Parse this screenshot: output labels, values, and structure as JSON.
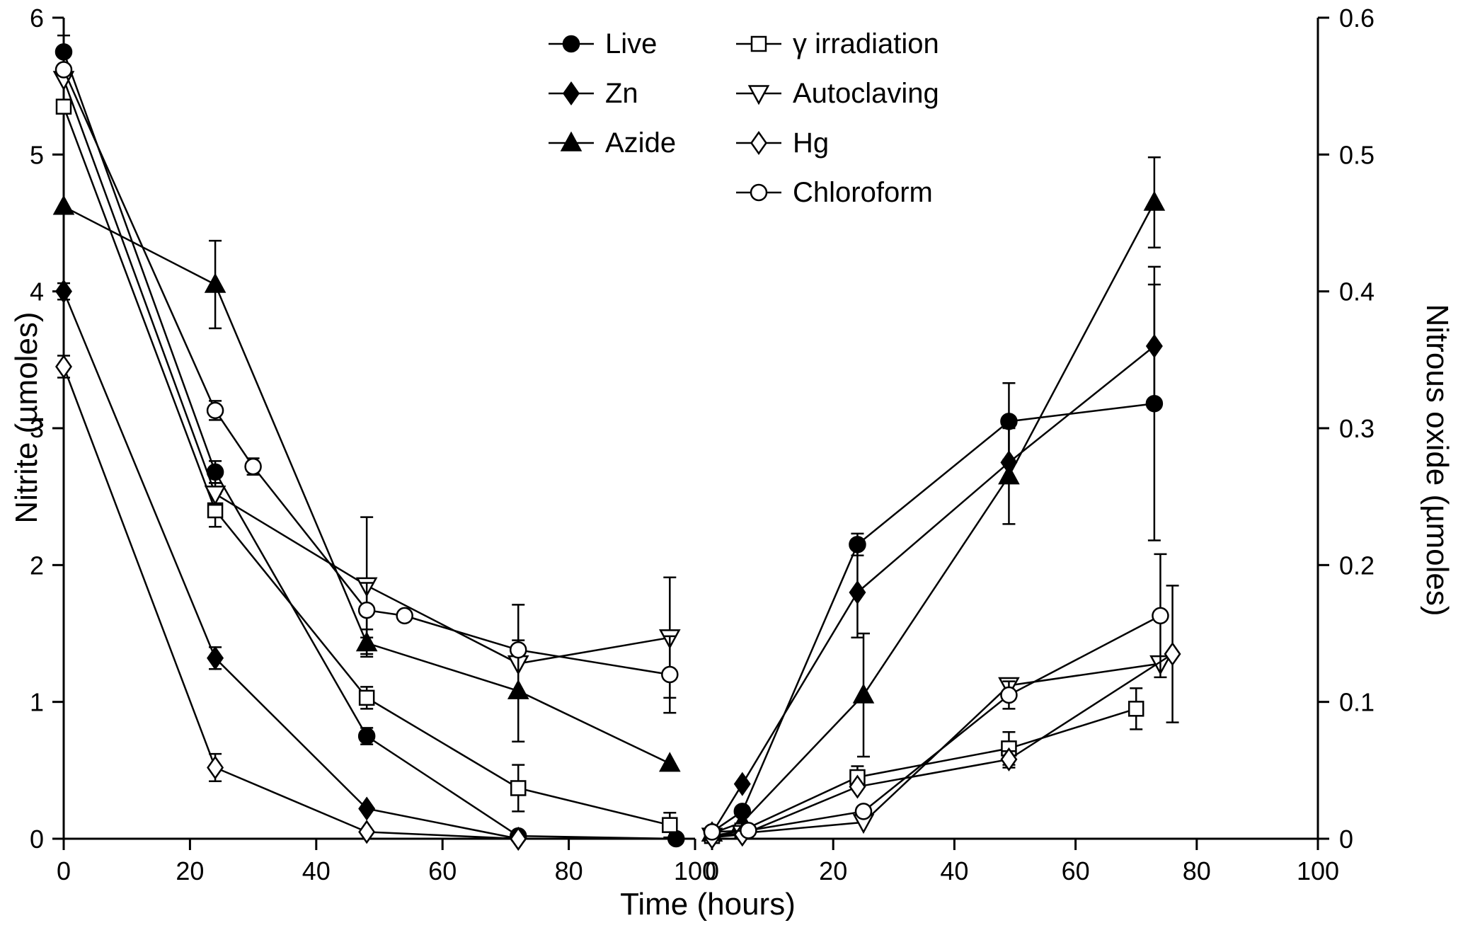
{
  "chart_data": {
    "type": "line",
    "title": "",
    "xlabel": "Time (hours)",
    "x_ticks": [
      0,
      20,
      40,
      60,
      80,
      100
    ],
    "color": "#000000",
    "background": "#ffffff",
    "legend_position": "top-center, two columns",
    "grid": false,
    "styles": {
      "Live": {
        "marker": "circle",
        "filled": true
      },
      "Zn": {
        "marker": "diamond",
        "filled": true
      },
      "Azide": {
        "marker": "triangle-up",
        "filled": true
      },
      "γ irradiation": {
        "marker": "square",
        "filled": false
      },
      "Autoclaving": {
        "marker": "triangle-down",
        "filled": false
      },
      "Hg": {
        "marker": "diamond",
        "filled": false
      },
      "Chloroform": {
        "marker": "circle",
        "filled": false
      }
    },
    "legend_columns": [
      [
        "Live",
        "Zn",
        "Azide"
      ],
      [
        "γ irradiation",
        "Autoclaving",
        "Hg",
        "Chloroform"
      ]
    ],
    "panels": [
      {
        "id": "nitrite",
        "ylabel": "Nitrite (µmoles)",
        "side": "left",
        "xlim": [
          0,
          100
        ],
        "ylim": [
          0,
          6
        ],
        "yticks": [
          0,
          1,
          2,
          3,
          4,
          5,
          6
        ],
        "series": [
          {
            "name": "Live",
            "points": [
              [
                0,
                5.75,
                0.12
              ],
              [
                24,
                2.68,
                0.08
              ],
              [
                48,
                0.75,
                0.06
              ],
              [
                72,
                0.02,
                0
              ],
              [
                97,
                0,
                0
              ]
            ]
          },
          {
            "name": "Zn",
            "points": [
              [
                0,
                4.0,
                0.06
              ],
              [
                24,
                1.32,
                0.08
              ],
              [
                48,
                0.22,
                0
              ],
              [
                72,
                0,
                0
              ]
            ]
          },
          {
            "name": "Azide",
            "points": [
              [
                0,
                4.62,
                0
              ],
              [
                24,
                4.05,
                0.32
              ],
              [
                48,
                1.43,
                0.1
              ],
              [
                72,
                1.08,
                0.37
              ],
              [
                96,
                0.55,
                0
              ]
            ]
          },
          {
            "name": "γ irradiation",
            "points": [
              [
                0,
                5.35,
                0
              ],
              [
                24,
                2.4,
                0.12
              ],
              [
                48,
                1.03,
                0.08
              ],
              [
                72,
                0.37,
                0.17
              ],
              [
                96,
                0.1,
                0.09
              ]
            ]
          },
          {
            "name": "Autoclaving",
            "points": [
              [
                0,
                5.55,
                0
              ],
              [
                24,
                2.52,
                0.08
              ],
              [
                48,
                1.85,
                0.5
              ],
              [
                72,
                1.28,
                0
              ],
              [
                96,
                1.47,
                0.44
              ]
            ]
          },
          {
            "name": "Hg",
            "points": [
              [
                0,
                3.45,
                0.08
              ],
              [
                24,
                0.52,
                0.1
              ],
              [
                48,
                0.05,
                0
              ],
              [
                72,
                0,
                0
              ]
            ]
          },
          {
            "name": "Chloroform",
            "points": [
              [
                0,
                5.62,
                0
              ],
              [
                24,
                3.13,
                0.07
              ],
              [
                30,
                2.72,
                0.06
              ],
              [
                48,
                1.67,
                0.2
              ],
              [
                54,
                1.63,
                0
              ],
              [
                72,
                1.38,
                0.33
              ],
              [
                96,
                1.2,
                0.28
              ]
            ]
          }
        ]
      },
      {
        "id": "nitrous-oxide",
        "ylabel": "Nitrous oxide (µmoles)",
        "side": "right",
        "xlim": [
          0,
          100
        ],
        "ylim": [
          0,
          0.6
        ],
        "yticks": [
          0,
          0.1,
          0.2,
          0.3,
          0.4,
          0.5,
          0.6
        ],
        "series": [
          {
            "name": "Live",
            "points": [
              [
                0,
                0.005,
                0
              ],
              [
                5,
                0.02,
                0
              ],
              [
                24,
                0.215,
                0.008
              ],
              [
                49,
                0.305,
                0.028
              ],
              [
                73,
                0.318,
                0.1
              ]
            ]
          },
          {
            "name": "Zn",
            "points": [
              [
                0,
                0.004,
                0
              ],
              [
                5,
                0.04,
                0
              ],
              [
                24,
                0.18,
                0.033
              ],
              [
                49,
                0.275,
                0
              ],
              [
                73,
                0.36,
                0.045
              ]
            ]
          },
          {
            "name": "Azide",
            "points": [
              [
                0,
                0.004,
                0
              ],
              [
                5,
                0.012,
                0
              ],
              [
                25,
                0.105,
                0.045
              ],
              [
                49,
                0.265,
                0.035
              ],
              [
                73,
                0.465,
                0.033
              ]
            ]
          },
          {
            "name": "γ irradiation",
            "points": [
              [
                0,
                0.002,
                0
              ],
              [
                5,
                0.006,
                0
              ],
              [
                24,
                0.045,
                0.008
              ],
              [
                49,
                0.066,
                0.012
              ],
              [
                70,
                0.095,
                0.015
              ]
            ]
          },
          {
            "name": "Autoclaving",
            "points": [
              [
                0,
                0.002,
                0
              ],
              [
                5,
                0.004,
                0
              ],
              [
                25,
                0.012,
                0
              ],
              [
                49,
                0.112,
                0
              ],
              [
                74,
                0.128,
                0
              ]
            ]
          },
          {
            "name": "Hg",
            "points": [
              [
                0,
                0.001,
                0
              ],
              [
                5,
                0.003,
                0
              ],
              [
                24,
                0.038,
                0
              ],
              [
                49,
                0.058,
                0.006
              ],
              [
                76,
                0.135,
                0.05
              ]
            ]
          },
          {
            "name": "Chloroform",
            "points": [
              [
                0,
                0.005,
                0
              ],
              [
                6,
                0.006,
                0
              ],
              [
                25,
                0.02,
                0
              ],
              [
                49,
                0.105,
                0.01
              ],
              [
                74,
                0.163,
                0.045
              ]
            ]
          }
        ]
      }
    ]
  }
}
